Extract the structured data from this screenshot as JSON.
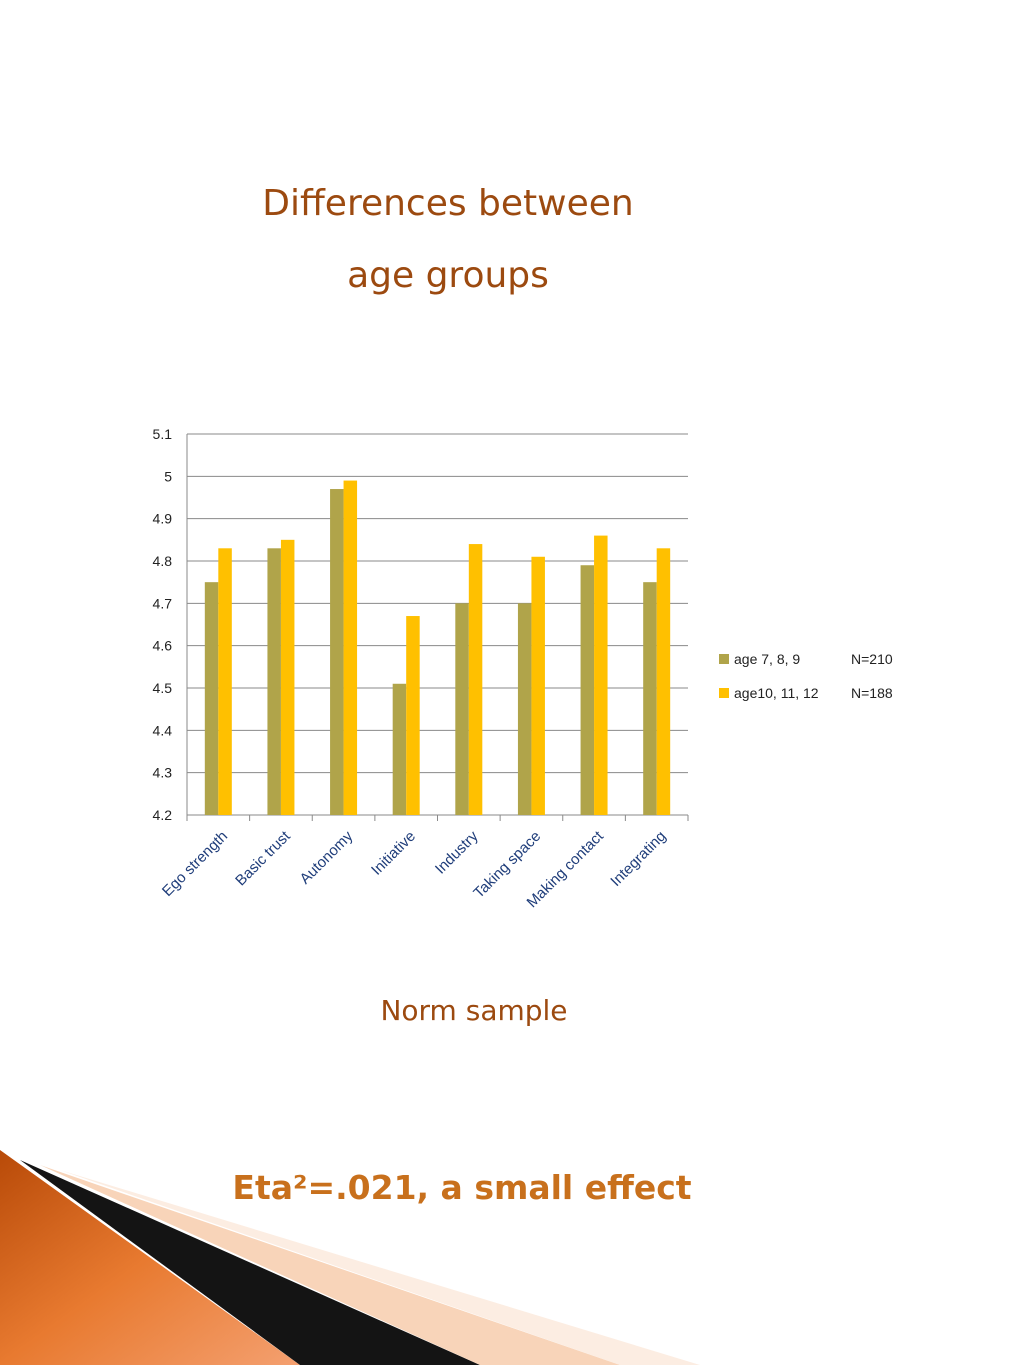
{
  "slide": {
    "title_line1": "Differences between",
    "title_line2": "age groups",
    "subtitle": "Norm sample",
    "effect_text": "Eta²=.021, a small effect"
  },
  "colors": {
    "title": "#9c4a10",
    "effect": "#c8701c",
    "series_1": "#b0a44a",
    "series_2": "#ffc000",
    "axis_labels": "#1f3d7a"
  },
  "chart_data": {
    "type": "bar",
    "categories": [
      "Ego strength",
      "Basic trust",
      "Autonomy",
      "Initiative",
      "Industry",
      "Taking space",
      "Making contact",
      "Integrating"
    ],
    "series": [
      {
        "name": "age 7, 8, 9",
        "n_label": "N=210",
        "values": [
          4.75,
          4.83,
          4.97,
          4.51,
          4.7,
          4.7,
          4.79,
          4.75
        ]
      },
      {
        "name": "age10, 11, 12",
        "n_label": "N=188",
        "values": [
          4.83,
          4.85,
          4.99,
          4.67,
          4.84,
          4.81,
          4.86,
          4.83
        ]
      }
    ],
    "yticks": [
      "5.1",
      "5",
      "4.9",
      "4.8",
      "4.7",
      "4.6",
      "4.5",
      "4.4",
      "4.3",
      "4.2"
    ],
    "ylim": [
      4.2,
      5.1
    ],
    "grid": true,
    "legend_position": "right"
  }
}
